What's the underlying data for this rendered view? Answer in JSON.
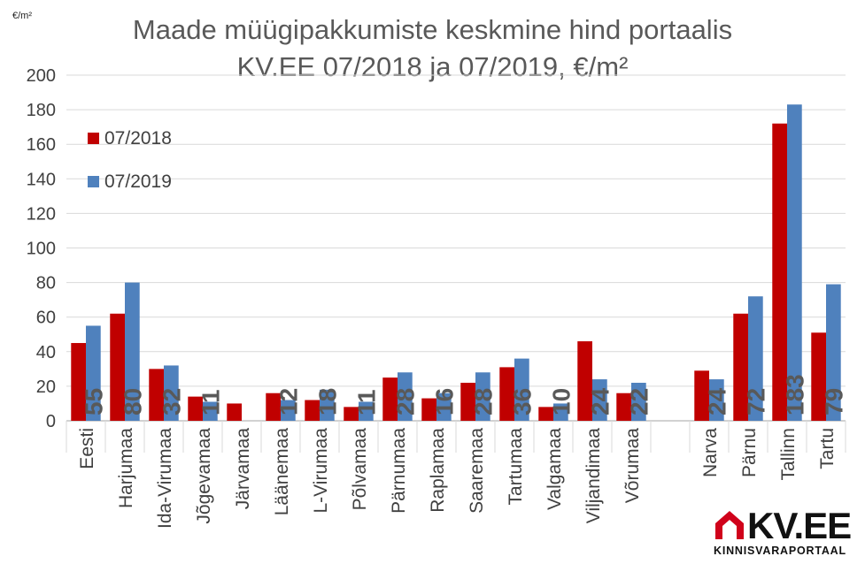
{
  "chart_data": {
    "type": "bar",
    "title_line1": "Maade müügipakkumiste keskmine hind portaalis",
    "title_line2": "KV.EE 07/2018 ja 07/2019, €/m²",
    "unit_label": "€/m²",
    "ylim": [
      0,
      200
    ],
    "yticks": [
      "0",
      "20",
      "40",
      "60",
      "80",
      "100",
      "120",
      "140",
      "160",
      "180",
      "200"
    ],
    "grid": true,
    "legend_position": "top-left",
    "categories": [
      "Eesti",
      "Harjumaa",
      "Ida-Virumaa",
      "Jõgevamaa",
      "Järvamaa",
      "Läänemaa",
      "L-Virumaa",
      "Põlvamaa",
      "Pärnumaa",
      "Raplamaa",
      "Saaremaa",
      "Tartumaa",
      "Valgamaa",
      "Viljandimaa",
      "Võrumaa",
      "",
      "Narva",
      "Pärnu",
      "Tallinn",
      "Tartu"
    ],
    "series": [
      {
        "name": "07/2018",
        "color": "#c00000",
        "values": [
          45,
          62,
          30,
          14,
          10,
          16,
          12,
          8,
          25,
          13,
          22,
          31,
          8,
          46,
          16,
          null,
          29,
          62,
          172,
          51
        ]
      },
      {
        "name": "07/2019",
        "color": "#4f81bd",
        "values": [
          55,
          80,
          32,
          11,
          null,
          12,
          18,
          11,
          28,
          16,
          28,
          36,
          10,
          24,
          22,
          null,
          24,
          72,
          183,
          79
        ],
        "data_labels": [
          "55",
          "80",
          "32",
          "11",
          "",
          "12",
          "18",
          "11",
          "28",
          "16",
          "28",
          "36",
          "10",
          "24",
          "22",
          "",
          "24",
          "72",
          "183",
          "79"
        ]
      }
    ]
  },
  "logo": {
    "text": "KV.EE",
    "subtitle": "KINNISVARAPORTAAL",
    "accent_color": "#d0021b"
  }
}
